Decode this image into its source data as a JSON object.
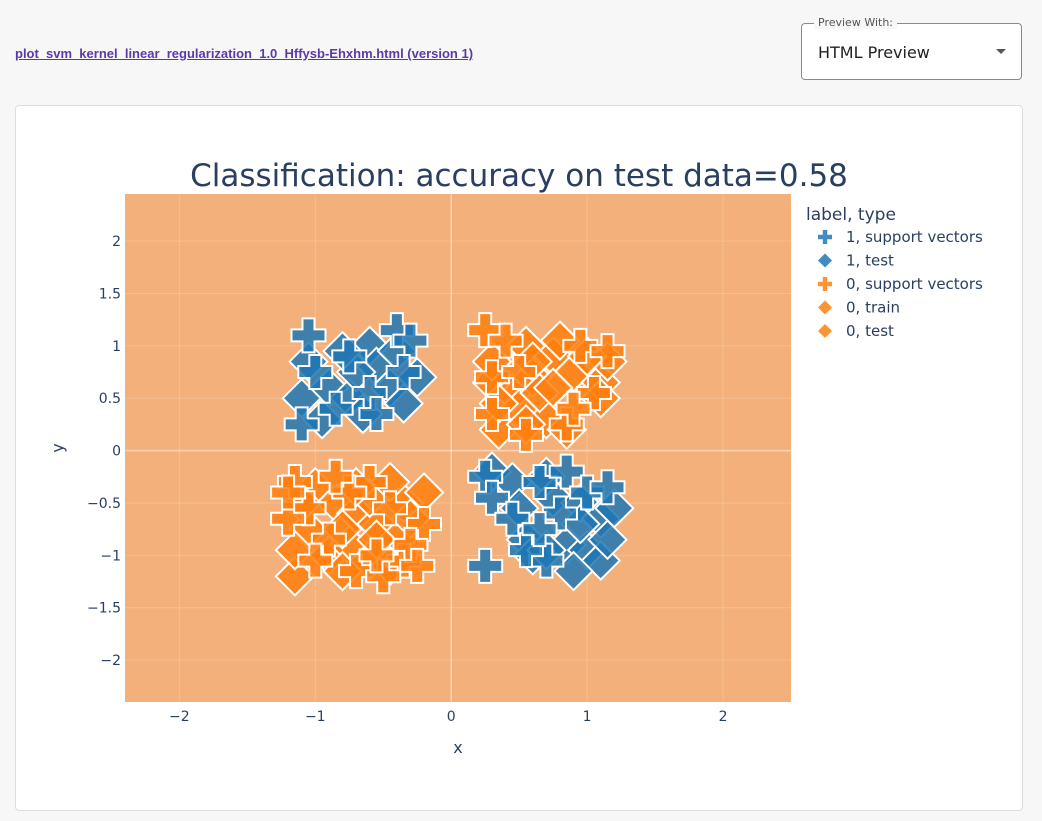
{
  "header": {
    "file_link": "plot_svm_kernel_linear_regularization_1.0_Hffysb-Ehxhm.html (version 1)",
    "preview_label": "Preview With:",
    "preview_value": "HTML Preview"
  },
  "colors": {
    "background_region": "#f3b07a",
    "class_1": "#1f77b4",
    "class_0": "#ff7f0e",
    "text": "#2a3f5f"
  },
  "chart_data": {
    "type": "scatter",
    "title": "Classification: accuracy on test data=0.58",
    "xlabel": "x",
    "ylabel": "y",
    "xlim": [
      -2.4,
      2.5
    ],
    "ylim": [
      -2.4,
      2.45
    ],
    "x_ticks": [
      -2,
      -1,
      0,
      1,
      2
    ],
    "x_tick_labels": [
      "−2",
      "−1",
      "0",
      "1",
      "2"
    ],
    "y_ticks": [
      -2,
      -1.5,
      -1,
      -0.5,
      0,
      0.5,
      1,
      1.5,
      2
    ],
    "y_tick_labels": [
      "−2",
      "−1.5",
      "−1",
      "−0.5",
      "0",
      "0.5",
      "1",
      "1.5",
      "2"
    ],
    "grid": true,
    "legend_title": "label, type",
    "legend_position": "top-right",
    "series": [
      {
        "name": "1, support vectors",
        "label": 1,
        "marker": "cross",
        "points": [
          [
            -1.05,
            1.1
          ],
          [
            -0.4,
            1.15
          ],
          [
            -0.3,
            1.05
          ],
          [
            -1.0,
            0.75
          ],
          [
            -0.75,
            0.9
          ],
          [
            -0.6,
            0.55
          ],
          [
            -0.85,
            0.4
          ],
          [
            -1.1,
            0.25
          ],
          [
            -0.55,
            0.35
          ],
          [
            -0.35,
            0.75
          ],
          [
            0.25,
            -0.25
          ],
          [
            0.3,
            -0.45
          ],
          [
            0.45,
            -0.65
          ],
          [
            0.65,
            -0.3
          ],
          [
            0.85,
            -0.2
          ],
          [
            0.25,
            -1.1
          ],
          [
            0.7,
            -1.05
          ],
          [
            0.55,
            -0.95
          ],
          [
            1.0,
            -0.4
          ],
          [
            0.8,
            -0.6
          ],
          [
            0.65,
            -0.75
          ],
          [
            1.15,
            -0.35
          ]
        ]
      },
      {
        "name": "1, test",
        "label": 1,
        "marker": "diamond",
        "points": [
          [
            -1.05,
            0.85
          ],
          [
            -0.9,
            0.6
          ],
          [
            -0.75,
            0.5
          ],
          [
            -0.6,
            1.0
          ],
          [
            -0.55,
            0.8
          ],
          [
            -0.4,
            0.95
          ],
          [
            -0.45,
            0.6
          ],
          [
            -0.35,
            0.45
          ],
          [
            -1.1,
            0.5
          ],
          [
            -0.95,
            0.3
          ],
          [
            -0.7,
            0.75
          ],
          [
            -0.8,
            0.95
          ],
          [
            -0.25,
            0.7
          ],
          [
            -0.65,
            0.35
          ],
          [
            0.3,
            -0.2
          ],
          [
            0.45,
            -0.3
          ],
          [
            0.5,
            -0.55
          ],
          [
            0.7,
            -0.25
          ],
          [
            0.75,
            -0.45
          ],
          [
            0.95,
            -0.5
          ],
          [
            1.1,
            -0.65
          ],
          [
            1.2,
            -0.55
          ],
          [
            0.55,
            -0.85
          ],
          [
            0.6,
            -1.0
          ],
          [
            0.85,
            -0.9
          ],
          [
            1.0,
            -0.95
          ],
          [
            1.1,
            -1.05
          ],
          [
            0.9,
            -1.15
          ],
          [
            1.15,
            -0.85
          ],
          [
            0.95,
            -0.7
          ],
          [
            0.7,
            -0.95
          ]
        ]
      },
      {
        "name": "0, support vectors",
        "label": 0,
        "marker": "cross",
        "points": [
          [
            0.25,
            1.15
          ],
          [
            0.4,
            1.05
          ],
          [
            0.3,
            0.7
          ],
          [
            0.5,
            0.75
          ],
          [
            0.3,
            0.35
          ],
          [
            0.95,
            1.0
          ],
          [
            1.05,
            0.55
          ],
          [
            0.85,
            0.25
          ],
          [
            0.55,
            0.15
          ],
          [
            0.9,
            0.4
          ],
          [
            1.15,
            0.95
          ],
          [
            -1.15,
            -0.3
          ],
          [
            -1.05,
            -0.55
          ],
          [
            -0.9,
            -0.85
          ],
          [
            -1.2,
            -0.65
          ],
          [
            -0.6,
            -0.3
          ],
          [
            -0.45,
            -0.55
          ],
          [
            -0.2,
            -0.7
          ],
          [
            -0.35,
            -1.05
          ],
          [
            -0.7,
            -1.15
          ],
          [
            -0.5,
            -1.2
          ],
          [
            -1.0,
            -1.05
          ],
          [
            -0.75,
            -0.4
          ],
          [
            -0.3,
            -0.9
          ],
          [
            -0.85,
            -0.25
          ],
          [
            -1.2,
            -0.4
          ],
          [
            -0.55,
            -1.0
          ],
          [
            -0.25,
            -1.1
          ]
        ]
      },
      {
        "name": "0, train",
        "label": 0,
        "marker": "diamond",
        "points": [
          [
            0.3,
            0.65
          ],
          [
            0.45,
            0.55
          ],
          [
            0.6,
            0.7
          ],
          [
            0.75,
            0.9
          ],
          [
            0.55,
            1.0
          ],
          [
            0.9,
            0.75
          ],
          [
            1.1,
            0.65
          ],
          [
            1.15,
            0.85
          ],
          [
            0.7,
            0.3
          ],
          [
            0.85,
            0.2
          ],
          [
            0.5,
            0.4
          ],
          [
            0.35,
            0.2
          ],
          [
            0.65,
            0.55
          ],
          [
            -1.0,
            -0.35
          ],
          [
            -0.85,
            -0.5
          ],
          [
            -0.7,
            -0.6
          ],
          [
            -0.55,
            -0.7
          ],
          [
            -0.4,
            -0.85
          ],
          [
            -0.6,
            -0.45
          ],
          [
            -0.35,
            -0.5
          ],
          [
            -0.2,
            -0.4
          ],
          [
            -1.05,
            -0.75
          ],
          [
            -0.9,
            -1.0
          ],
          [
            -0.75,
            -0.9
          ],
          [
            -0.6,
            -1.05
          ],
          [
            -0.45,
            -1.1
          ],
          [
            -1.15,
            -1.2
          ]
        ]
      },
      {
        "name": "0, test",
        "label": 0,
        "marker": "diamond",
        "points": [
          [
            0.35,
            0.45
          ],
          [
            0.6,
            0.85
          ],
          [
            0.8,
            1.05
          ],
          [
            1.0,
            0.9
          ],
          [
            1.1,
            0.5
          ],
          [
            0.75,
            0.6
          ],
          [
            0.55,
            0.25
          ],
          [
            0.3,
            0.85
          ],
          [
            -1.1,
            -0.5
          ],
          [
            -0.8,
            -0.75
          ],
          [
            -0.55,
            -0.85
          ],
          [
            -0.3,
            -0.65
          ],
          [
            -0.8,
            -1.15
          ],
          [
            -1.15,
            -0.95
          ],
          [
            -0.7,
            -0.35
          ],
          [
            -0.45,
            -0.3
          ]
        ]
      }
    ]
  }
}
